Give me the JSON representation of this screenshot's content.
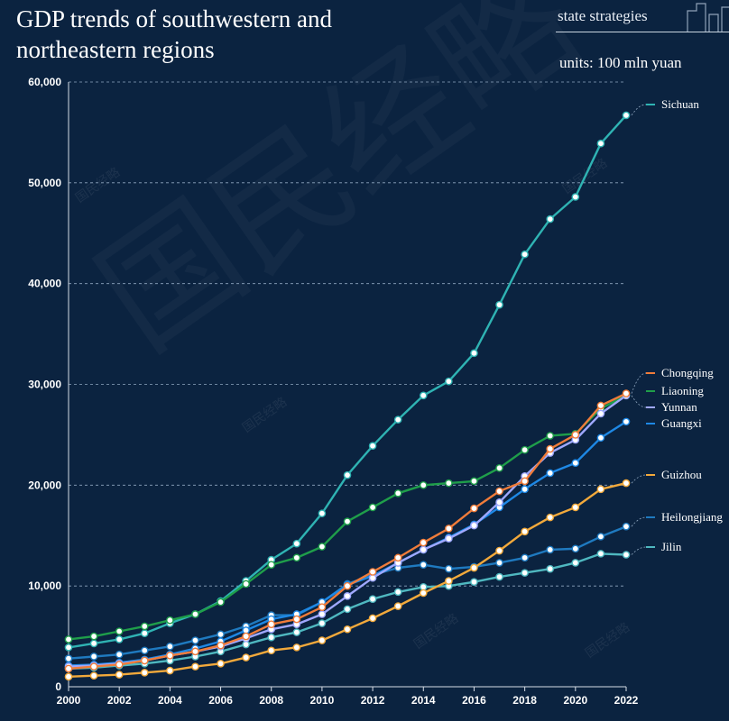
{
  "header": {
    "title": "GDP trends of southwestern and northeastern regions",
    "brand": "state strategies",
    "units": "units: 100 mln yuan"
  },
  "watermark": "国民经略",
  "chart_data": {
    "type": "line",
    "x": [
      2000,
      2001,
      2002,
      2003,
      2004,
      2005,
      2006,
      2007,
      2008,
      2009,
      2010,
      2011,
      2012,
      2013,
      2014,
      2015,
      2016,
      2017,
      2018,
      2019,
      2020,
      2021,
      2022
    ],
    "xlim": [
      2000,
      2022
    ],
    "xticks": [
      2000,
      2002,
      2004,
      2006,
      2008,
      2010,
      2012,
      2014,
      2016,
      2018,
      2020,
      2022
    ],
    "ylim": [
      0,
      60000
    ],
    "yticks": [
      0,
      10000,
      20000,
      30000,
      40000,
      50000,
      60000
    ],
    "ytick_labels": [
      "0",
      "10,000",
      "20,000",
      "30,000",
      "40,000",
      "50,000",
      "60,000"
    ],
    "grid": "horizontal dashed",
    "legend": "right, end of lines",
    "series": [
      {
        "name": "Sichuan",
        "color": "#2fb3b3",
        "values": [
          3900,
          4300,
          4700,
          5300,
          6300,
          7200,
          8500,
          10500,
          12600,
          14200,
          17200,
          21000,
          23900,
          26500,
          28900,
          30300,
          33100,
          37900,
          42900,
          46400,
          48600,
          53900,
          56700
        ]
      },
      {
        "name": "Liaoning",
        "color": "#1f9e4a",
        "values": [
          4700,
          5000,
          5500,
          6000,
          6600,
          7200,
          8400,
          10200,
          12100,
          12800,
          13900,
          16400,
          17800,
          19200,
          20000,
          20200,
          20400,
          21700,
          23500,
          24900,
          25100,
          27600,
          28900
        ]
      },
      {
        "name": "Heilongjiang",
        "color": "#1f7ac0",
        "values": [
          2800,
          3000,
          3200,
          3600,
          4000,
          4600,
          5200,
          6000,
          7100,
          7100,
          8400,
          10200,
          11100,
          11800,
          12100,
          11700,
          11900,
          12300,
          12800,
          13600,
          13700,
          14900,
          15900
        ]
      },
      {
        "name": "Jilin",
        "color": "#4fb8c0",
        "values": [
          1800,
          1900,
          2100,
          2300,
          2600,
          3000,
          3500,
          4200,
          4900,
          5400,
          6300,
          7700,
          8700,
          9400,
          9900,
          10000,
          10400,
          10900,
          11300,
          11700,
          12300,
          13200,
          13100
        ]
      },
      {
        "name": "Guangxi",
        "color": "#1e88e5",
        "values": [
          2100,
          2200,
          2400,
          2700,
          3200,
          3800,
          4500,
          5600,
          6700,
          7200,
          8400,
          10100,
          11000,
          12300,
          13600,
          14800,
          16100,
          17800,
          19600,
          21200,
          22200,
          24700,
          26300
        ]
      },
      {
        "name": "Yunnan",
        "color": "#9fa8ff",
        "values": [
          2000,
          2100,
          2300,
          2600,
          3100,
          3500,
          4000,
          4800,
          5700,
          6200,
          7200,
          9000,
          10800,
          12300,
          13600,
          14700,
          16000,
          18300,
          20900,
          23200,
          24500,
          27100,
          28900
        ]
      },
      {
        "name": "Chongqing",
        "color": "#f07c3a",
        "values": [
          1800,
          2000,
          2200,
          2600,
          3100,
          3500,
          4100,
          5000,
          6200,
          6700,
          7900,
          10000,
          11400,
          12800,
          14300,
          15700,
          17700,
          19400,
          20400,
          23600,
          25000,
          27900,
          29100
        ]
      },
      {
        "name": "Guizhou",
        "color": "#f2a93b",
        "values": [
          1000,
          1100,
          1200,
          1400,
          1600,
          2000,
          2300,
          2900,
          3600,
          3900,
          4600,
          5700,
          6800,
          8000,
          9300,
          10500,
          11800,
          13500,
          15400,
          16800,
          17800,
          19600,
          20200
        ]
      }
    ],
    "legend_order": [
      "Sichuan",
      "Chongqing",
      "Liaoning",
      "Yunnan",
      "Guangxi",
      "Guizhou",
      "Heilongjiang",
      "Jilin"
    ]
  }
}
